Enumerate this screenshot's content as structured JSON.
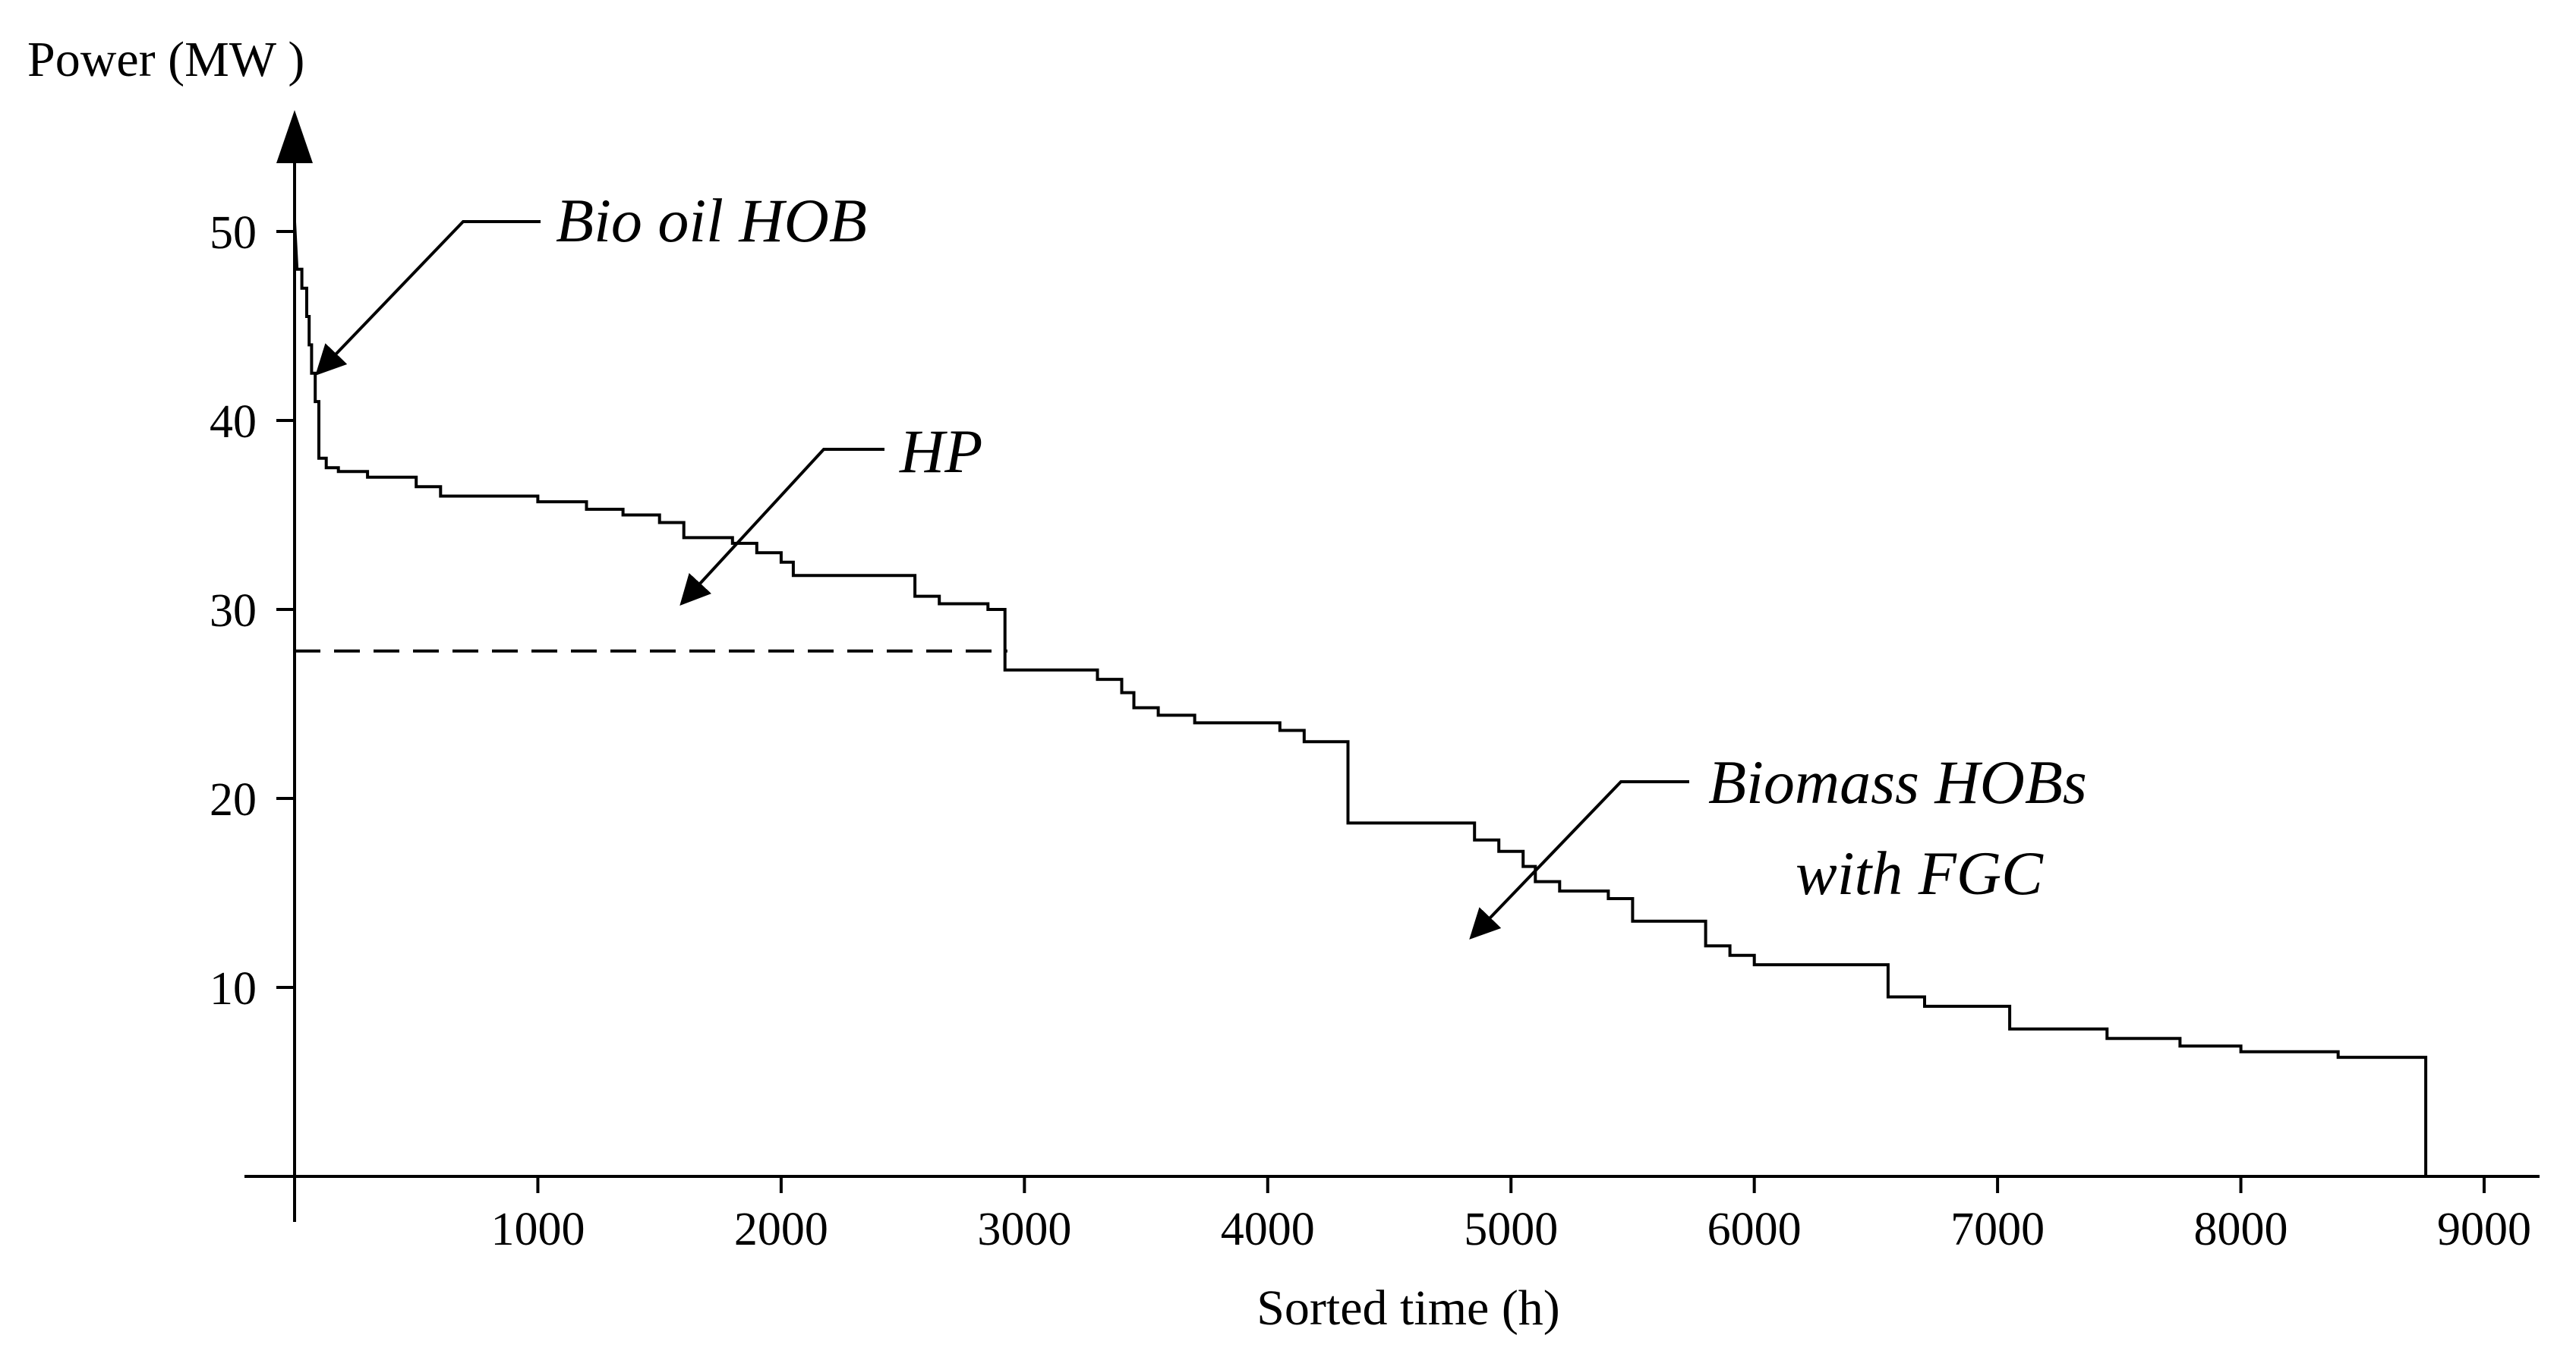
{
  "chart_data": {
    "type": "line",
    "title": "",
    "xlabel": "Sorted time (h)",
    "ylabel": "Power (MW )",
    "xlim": [
      0,
      9200
    ],
    "ylim": [
      0,
      55
    ],
    "x_ticks": [
      1000,
      2000,
      3000,
      4000,
      5000,
      6000,
      7000,
      8000,
      9000
    ],
    "y_ticks": [
      10,
      20,
      30,
      40,
      50
    ],
    "grid": false,
    "legend": "none",
    "series": [
      {
        "values": [
          [
            0,
            50.5
          ],
          [
            10,
            48.0
          ],
          [
            30,
            48.0
          ],
          [
            30,
            47.0
          ],
          [
            50,
            47.0
          ],
          [
            50,
            45.5
          ],
          [
            60,
            45.5
          ],
          [
            60,
            44.0
          ],
          [
            70,
            44.0
          ],
          [
            70,
            42.5
          ],
          [
            85,
            42.5
          ],
          [
            85,
            41.0
          ],
          [
            100,
            41.0
          ],
          [
            100,
            38.0
          ],
          [
            130,
            38.0
          ],
          [
            130,
            37.5
          ],
          [
            180,
            37.5
          ],
          [
            180,
            37.3
          ],
          [
            300,
            37.3
          ],
          [
            300,
            37.0
          ],
          [
            500,
            37.0
          ],
          [
            500,
            36.5
          ],
          [
            600,
            36.5
          ],
          [
            600,
            36.0
          ],
          [
            1000,
            36.0
          ],
          [
            1000,
            35.7
          ],
          [
            1200,
            35.7
          ],
          [
            1200,
            35.3
          ],
          [
            1350,
            35.3
          ],
          [
            1350,
            35.0
          ],
          [
            1500,
            35.0
          ],
          [
            1500,
            34.6
          ],
          [
            1600,
            34.6
          ],
          [
            1600,
            33.8
          ],
          [
            1800,
            33.8
          ],
          [
            1800,
            33.5
          ],
          [
            1900,
            33.5
          ],
          [
            1900,
            33.0
          ],
          [
            2000,
            33.0
          ],
          [
            2000,
            32.5
          ],
          [
            2050,
            32.5
          ],
          [
            2050,
            31.8
          ],
          [
            2550,
            31.8
          ],
          [
            2550,
            30.7
          ],
          [
            2650,
            30.7
          ],
          [
            2650,
            30.3
          ],
          [
            2850,
            30.3
          ],
          [
            2850,
            30.0
          ],
          [
            2920,
            30.0
          ],
          [
            2920,
            26.8
          ],
          [
            3300,
            26.8
          ],
          [
            3300,
            26.3
          ],
          [
            3400,
            26.3
          ],
          [
            3400,
            25.6
          ],
          [
            3450,
            25.6
          ],
          [
            3450,
            24.8
          ],
          [
            3550,
            24.8
          ],
          [
            3550,
            24.4
          ],
          [
            3700,
            24.4
          ],
          [
            3700,
            24.0
          ],
          [
            4050,
            24.0
          ],
          [
            4050,
            23.6
          ],
          [
            4150,
            23.6
          ],
          [
            4150,
            23.0
          ],
          [
            4330,
            23.0
          ],
          [
            4330,
            18.7
          ],
          [
            4850,
            18.7
          ],
          [
            4850,
            17.8
          ],
          [
            4950,
            17.8
          ],
          [
            4950,
            17.2
          ],
          [
            5050,
            17.2
          ],
          [
            5050,
            16.4
          ],
          [
            5100,
            16.4
          ],
          [
            5100,
            15.6
          ],
          [
            5200,
            15.6
          ],
          [
            5200,
            15.1
          ],
          [
            5400,
            15.1
          ],
          [
            5400,
            14.7
          ],
          [
            5500,
            14.7
          ],
          [
            5500,
            13.5
          ],
          [
            5800,
            13.5
          ],
          [
            5800,
            12.2
          ],
          [
            5900,
            12.2
          ],
          [
            5900,
            11.7
          ],
          [
            6000,
            11.7
          ],
          [
            6000,
            11.2
          ],
          [
            6550,
            11.2
          ],
          [
            6550,
            9.5
          ],
          [
            6700,
            9.5
          ],
          [
            6700,
            9.0
          ],
          [
            7050,
            9.0
          ],
          [
            7050,
            7.8
          ],
          [
            7450,
            7.8
          ],
          [
            7450,
            7.3
          ],
          [
            7750,
            7.3
          ],
          [
            7750,
            6.9
          ],
          [
            8000,
            6.9
          ],
          [
            8000,
            6.6
          ],
          [
            8400,
            6.6
          ],
          [
            8400,
            6.3
          ],
          [
            8760,
            6.3
          ],
          [
            8760,
            0
          ]
        ]
      }
    ],
    "reference_lines": [
      {
        "style": "dashed",
        "x": [
          0,
          2930
        ],
        "y": 27.8
      }
    ],
    "annotations": [
      {
        "text": "Bio oil HOB",
        "points_to": [
          70,
          41.5
        ]
      },
      {
        "text": "HP",
        "points_to": [
          1550,
          30.0
        ]
      },
      {
        "text": "Biomass HOBs",
        "points_to": [
          4800,
          12.4
        ]
      },
      {
        "text": "with FGC",
        "points_to": [
          4800,
          12.4
        ]
      }
    ]
  }
}
